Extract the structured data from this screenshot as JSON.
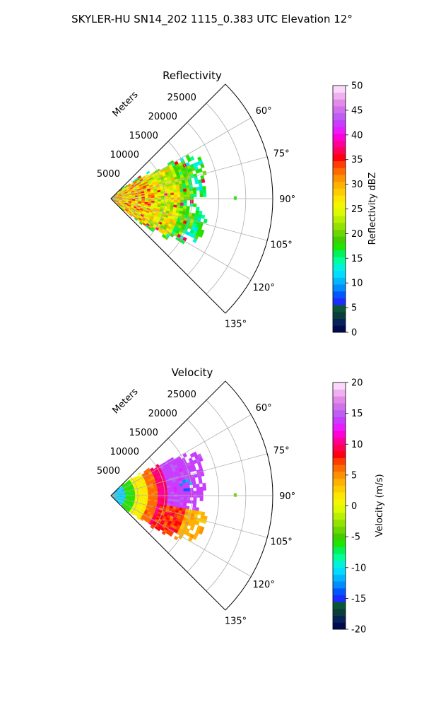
{
  "figure": {
    "title": "SKYLER-HU  SN14_202  1115_0.383 UTC Elevation 12°"
  },
  "chart_data": [
    {
      "type": "heatmap",
      "projection": "polar-sector",
      "title": "Reflectivity",
      "radial_label": "Meters",
      "r_max": 30000,
      "r_ticks": [
        5000,
        10000,
        15000,
        20000,
        25000
      ],
      "theta_range_deg": [
        45,
        135
      ],
      "theta_ticks_deg": [
        60,
        75,
        90,
        105,
        120,
        135
      ],
      "theta_tick_labels": [
        "60°",
        "75°",
        "90°",
        "105°",
        "120°",
        "135°"
      ],
      "grid": true,
      "echo_extent": {
        "range_m_by_azimuth_deg": [
          [
            45,
            0
          ],
          [
            58,
            11000
          ],
          [
            62,
            17000
          ],
          [
            70,
            18500
          ],
          [
            80,
            17000
          ],
          [
            90,
            17500
          ],
          [
            95,
            15500
          ],
          [
            104,
            18500
          ],
          [
            110,
            18000
          ],
          [
            118,
            17000
          ],
          [
            124,
            14000
          ],
          [
            128,
            9000
          ],
          [
            134,
            2000
          ]
        ]
      },
      "colorbar": {
        "label": "Reflectivity dBZ",
        "vmin": 0,
        "vmax": 50,
        "ticks": [
          0,
          5,
          10,
          15,
          20,
          25,
          30,
          35,
          40,
          45,
          50
        ],
        "colors": [
          "#000a4f",
          "#05235a",
          "#0a3e3a",
          "#0b5637",
          "#1b2cff",
          "#0057ff",
          "#008bff",
          "#00b6ff",
          "#00dcff",
          "#00f2df",
          "#00ff99",
          "#00f25a",
          "#1ee600",
          "#42cd00",
          "#6bd600",
          "#94e200",
          "#b9ef00",
          "#dcfa00",
          "#f2f600",
          "#ffe600",
          "#ffcc00",
          "#ffb000",
          "#ff9000",
          "#ff6a00",
          "#ff3d00",
          "#ff0010",
          "#ff0052",
          "#ff0096",
          "#ff00d8",
          "#e81cff",
          "#c83cff",
          "#bf5cf4",
          "#d070ec",
          "#e28ae8",
          "#efb0ef",
          "#fbd8fb"
        ]
      }
    },
    {
      "type": "heatmap",
      "projection": "polar-sector",
      "title": "Velocity",
      "radial_label": "Meters",
      "r_max": 30000,
      "r_ticks": [
        5000,
        10000,
        15000,
        20000,
        25000
      ],
      "theta_range_deg": [
        45,
        135
      ],
      "theta_ticks_deg": [
        60,
        75,
        90,
        105,
        120,
        135
      ],
      "theta_tick_labels": [
        "60°",
        "75°",
        "90°",
        "105°",
        "120°",
        "135°"
      ],
      "grid": true,
      "velocity_bands_by_range_m": [
        {
          "r_from": 0,
          "r_to": 2500,
          "value": -11
        },
        {
          "r_from": 2500,
          "r_to": 4500,
          "value": -6
        },
        {
          "r_from": 4500,
          "r_to": 6500,
          "value": 1
        },
        {
          "r_from": 6500,
          "r_to": 8500,
          "value": 6
        },
        {
          "r_from": 8500,
          "r_to": 10500,
          "value": 10
        },
        {
          "r_from": 10500,
          "r_to": 18500,
          "value": 14
        }
      ],
      "colorbar": {
        "label": "Velocity (m/s)",
        "vmin": -20,
        "vmax": 20,
        "ticks": [
          -20,
          -15,
          -10,
          -5,
          0,
          5,
          10,
          15,
          20
        ],
        "colors": [
          "#000a4f",
          "#05235a",
          "#0a3e3a",
          "#0b5637",
          "#1b2cff",
          "#0057ff",
          "#008bff",
          "#00b6ff",
          "#00dcff",
          "#00f2df",
          "#00ff99",
          "#00f25a",
          "#1ee600",
          "#42cd00",
          "#6bd600",
          "#94e200",
          "#b9ef00",
          "#dcfa00",
          "#f2f600",
          "#ffe600",
          "#ffcc00",
          "#ffb000",
          "#ff9000",
          "#ff6a00",
          "#ff3d00",
          "#ff0010",
          "#ff0052",
          "#ff0096",
          "#ff00d8",
          "#e81cff",
          "#c83cff",
          "#bf5cf4",
          "#d070ec",
          "#e28ae8",
          "#efb0ef",
          "#fbd8fb"
        ]
      }
    }
  ]
}
